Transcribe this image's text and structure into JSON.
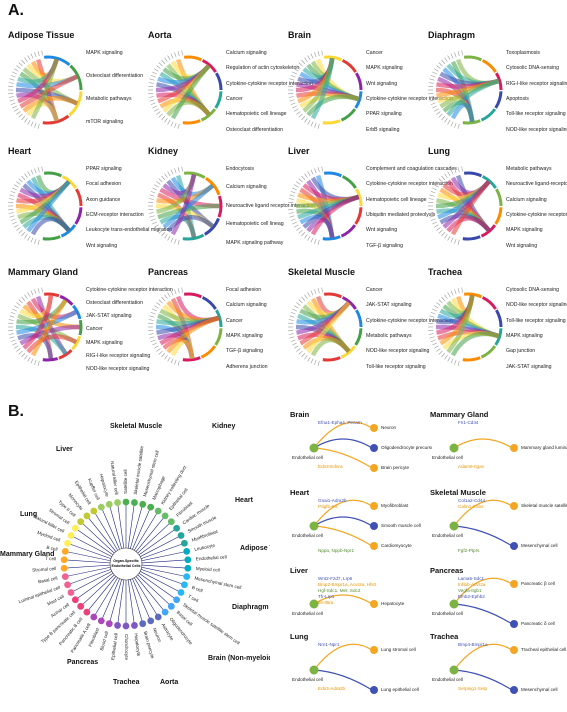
{
  "section_a": "A.",
  "section_b": "B.",
  "chord_panels": [
    {
      "title": "Adipose Tissue",
      "pathways": [
        "MAPK signaling",
        "Osteoclast differentiation",
        "Metabolic pathways",
        "mTOR signaling"
      ]
    },
    {
      "title": "Aorta",
      "pathways": [
        "Calcium signaling",
        "Regulation of actin cytoskeleton",
        "Cytokine-cytokine receptor interaction",
        "Cancer",
        "Hematopoietic cell lineage",
        "Osteoclast differentiation"
      ]
    },
    {
      "title": "Brain",
      "pathways": [
        "Cancer",
        "MAPK signaling",
        "Wnt signaling",
        "Cytokine-cytokine receptor interaction",
        "PPAR signaling",
        "ErbB signaling"
      ]
    },
    {
      "title": "Diaphragm",
      "pathways": [
        "Toxoplasmosis",
        "Cytosolic DNA-sensing",
        "RIG-I-like receptor signaling",
        "Apoptosis",
        "Toll-like receptor signaling",
        "NOD-like receptor signaling"
      ]
    },
    {
      "title": "Heart",
      "pathways": [
        "PPAR signaling",
        "Focal adhesion",
        "Axon guidance",
        "ECM-receptor interaction",
        "Leukocyte trans-endothelial migration",
        "Wnt signaling"
      ]
    },
    {
      "title": "Kidney",
      "pathways": [
        "Endocytosis",
        "Calcium signaling",
        "Neuroactive ligand receptor interaction",
        "Hematopoietic cell lineag",
        "MAPK signaling pathway"
      ]
    },
    {
      "title": "Liver",
      "pathways": [
        "Complement and coagulation cascades",
        "Cytokine-cytokine receptor interaction",
        "Hematopoietic cell lineage",
        "Ubiquitin mediated proteolysis",
        "Wnt signaling",
        "TGF-β signaling"
      ]
    },
    {
      "title": "Lung",
      "pathways": [
        "Metabolic pathways",
        "Neuroactive ligand-receptor interaction",
        "Calcium signaling",
        "Cytokine-cytokine receptor interaction",
        "MAPK signaling",
        "Wnt signaling"
      ]
    },
    {
      "title": "Mammary Gland",
      "pathways": [
        "Cytokine-cytokine receptor interaction",
        "Osteoclast differentiation",
        "JAK-STAT signaling",
        "Cancer",
        "MAPK signaling",
        "RIG-I-like receptor signaling",
        "NOD-like receptor signaling"
      ]
    },
    {
      "title": "Pancreas",
      "pathways": [
        "Focal adhesion",
        "Calcium signaling",
        "Cancer",
        "MAPK signaling",
        "TGF-β signaling",
        "Adherens junction"
      ]
    },
    {
      "title": "Skeletal Muscle",
      "pathways": [
        "Cancer",
        "JAK-STAT signaling",
        "Cytokine-cytokine receptor interaction",
        "Metabolic pathways",
        "NOD-like receptor signaling",
        "Toll-like receptor signaling"
      ]
    },
    {
      "title": "Trachea",
      "pathways": [
        "Cytosolic DNA-sensing",
        "NOD-like receptor signaling",
        "Toll-like receptor signaling",
        "MAPK signaling",
        "Gap junction",
        "JAK-STAT signaling"
      ]
    }
  ],
  "colors": {
    "chord": [
      "#e53935",
      "#fb8c00",
      "#fdd835",
      "#7cb342",
      "#43a047",
      "#26a69a",
      "#1e88e5",
      "#3949ab",
      "#8e24aa",
      "#d81b60"
    ],
    "ring": [
      "#4caf50",
      "#66bb6a",
      "#26a69a",
      "#00acc1",
      "#29b6f6",
      "#42a5f5",
      "#5c6bc0",
      "#7e57c2",
      "#ab47bc",
      "#ec407a",
      "#f06292",
      "#ffa726",
      "#ffee58",
      "#c0ca33",
      "#9ccc65"
    ],
    "node_green": "#7cb342",
    "node_orange": "#f4a623",
    "node_blue": "#3f51b5",
    "gene_blue": "#3f51b5",
    "gene_orange": "#e69500",
    "gene_green": "#558b2f"
  },
  "radial": {
    "center_text_1": "Organ-Specific",
    "center_text_2": "Endothelial Cells",
    "organ_labels": [
      "Skeletal Muscle",
      "Kidney",
      "Heart",
      "Adipose Tissue",
      "Diaphragm",
      "Brain (Non-myeloid)",
      "Aorta",
      "Trachea",
      "Pancreas",
      "Mammary Gland",
      "Lung",
      "Liver"
    ],
    "cell_types": [
      "Satellite cell",
      "Skeletal muscle satellite",
      "Mesenchymal stem cell",
      "Macrophage",
      "Kidney collecting duct",
      "Epithelial cell",
      "Fibroblast",
      "Cardiac muscle",
      "Smooth muscle",
      "Myofibroblast",
      "Leukocyte",
      "Endothelial cell",
      "Myeloid cell",
      "Mesenchymal stem cell",
      "B cell",
      "T cell",
      "Skeletal muscle satellite stem cell",
      "Basal cell",
      "Oligodendrocyte",
      "Astrocyte",
      "Neuron",
      "Brain pericyte",
      "Hepatocyte",
      "Chondrocyte",
      "Epithelial cell",
      "Blood cell",
      "Fibroblast",
      "Pancreatic A cell",
      "Pancreatic B cell",
      "Type B pancreatic cell",
      "Acinar cell",
      "Mast cell",
      "Luminal epithelial cell",
      "Basal cell",
      "Stromal cell",
      "T cell",
      "B cell",
      "Myeloid cell",
      "Natural killer cell",
      "Stromal cell",
      "Type II cell",
      "Monocyte",
      "Epithelial cell",
      "Kupffer cell",
      "Hepatocyte",
      "Natural killer cell"
    ]
  },
  "net_panels": [
    {
      "title": "Brain",
      "genes": [
        "Efna1-Epha4, Pecam",
        "Edn3-Ednra"
      ],
      "cells": [
        "Endothelial cell",
        "Neuron",
        "Oligodendrocyte precursor cell",
        "Brain pericyte"
      ]
    },
    {
      "title": "Mammary Gland",
      "genes": [
        "Fn1-Cd44",
        "Adam9-Itgav"
      ],
      "cells": [
        "Endothelial cell",
        "Mammary gland luminal epithelial cell"
      ]
    },
    {
      "title": "Heart",
      "genes": [
        "Gnai1-Adra2b",
        "Pdgfb-Kit",
        "Nppa, Nppb-Npr1"
      ],
      "cells": [
        "Endothelial cell",
        "Myofibroblast",
        "Smooth muscle cell",
        "Cardiomyocyte"
      ]
    },
    {
      "title": "Skeletal  Muscle",
      "genes": [
        "Col1a2-Cd44",
        "Calm1-Calcr",
        "Fgf2-Ptprs"
      ],
      "cells": [
        "Endothelial cell",
        "Skeletal muscle satellite cell",
        "Mesenchymal cell"
      ]
    },
    {
      "title": "Liver",
      "genes": [
        "Wnt2-Fzd7, Lrp6",
        "Bmp2-Bmpr1a, Acvr2a, Hfe2",
        "Hgf-Sdc1, Met, Sdc2",
        "Tfr-Lrp1",
        "Il6-Il6ra"
      ],
      "cells": [
        "Endothelial cell",
        "Hepatocyte"
      ]
    },
    {
      "title": "Pancreas",
      "genes": [
        "Lama5-Sdc1",
        "Inhbb-Acvr2a",
        "Vegfa-Itgb1",
        "Efnb2-Ephb2"
      ],
      "cells": [
        "Endothelial cell",
        "Pancreatic β cell",
        "Pancreatic δ cell"
      ]
    },
    {
      "title": "Lung",
      "genes": [
        "Nrn1-Npr1",
        "Edn3-Adra2b"
      ],
      "cells": [
        "Endothelial cell",
        "Lung stromal cell",
        "Lung epithelial cell"
      ]
    },
    {
      "title": "Trachea",
      "genes": [
        "Bmp4-Bmpr1a",
        "Serping1-Selp"
      ],
      "cells": [
        "Endothelial cell",
        "Tracheal epithelial cell",
        "Mesenchymal cell"
      ]
    }
  ]
}
